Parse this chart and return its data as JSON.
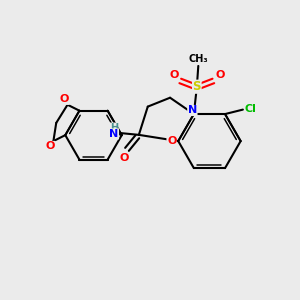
{
  "background_color": "#ebebeb",
  "atom_colors": {
    "C": "#000000",
    "N": "#0000ff",
    "O": "#ff0000",
    "S": "#cccc00",
    "Cl": "#00bb00",
    "H": "#4a9090"
  },
  "lw": 1.5
}
